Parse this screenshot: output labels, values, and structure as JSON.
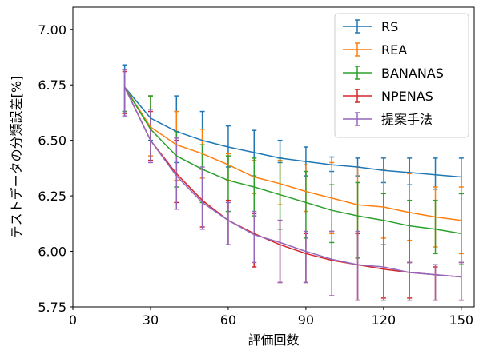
{
  "chart_data": {
    "type": "line",
    "xlabel": "評価回数",
    "ylabel": "テストデータの分類誤差[%]",
    "xlim": [
      0,
      155
    ],
    "ylim": [
      5.75,
      7.1
    ],
    "xticks": [
      0,
      30,
      60,
      90,
      120,
      150
    ],
    "yticks": [
      5.75,
      6.0,
      6.25,
      6.5,
      6.75,
      7.0
    ],
    "xtick_labels": [
      "0",
      "30",
      "60",
      "90",
      "120",
      "150"
    ],
    "ytick_labels": [
      "5.75",
      "6.00",
      "6.25",
      "6.50",
      "6.75",
      "7.00"
    ],
    "x": [
      20,
      30,
      40,
      50,
      60,
      70,
      80,
      90,
      100,
      110,
      120,
      130,
      140,
      150
    ],
    "legend_position": "top-right",
    "grid": false,
    "series": [
      {
        "name": "RS",
        "color": "#1f77b4",
        "values": [
          6.74,
          6.6,
          6.54,
          6.5,
          6.47,
          6.445,
          6.42,
          6.405,
          6.39,
          6.38,
          6.365,
          6.355,
          6.345,
          6.335
        ],
        "err_low": [
          6.63,
          6.5,
          6.4,
          6.37,
          6.38,
          6.34,
          6.4,
          6.34,
          6.36,
          6.34,
          6.31,
          6.3,
          6.28,
          6.26
        ],
        "err_high": [
          6.84,
          6.7,
          6.7,
          6.63,
          6.565,
          6.545,
          6.5,
          6.47,
          6.425,
          6.42,
          6.42,
          6.42,
          6.42,
          6.42
        ]
      },
      {
        "name": "REA",
        "color": "#ff7f0e",
        "values": [
          6.74,
          6.56,
          6.48,
          6.44,
          6.39,
          6.335,
          6.305,
          6.27,
          6.24,
          6.21,
          6.2,
          6.175,
          6.155,
          6.14
        ],
        "err_low": [
          6.62,
          6.43,
          6.32,
          6.33,
          6.32,
          6.26,
          6.21,
          6.18,
          6.08,
          6.08,
          6.06,
          6.05,
          6.02,
          5.99
        ],
        "err_high": [
          6.82,
          6.7,
          6.63,
          6.55,
          6.44,
          6.41,
          6.41,
          6.39,
          6.4,
          6.38,
          6.37,
          6.35,
          6.29,
          6.29
        ]
      },
      {
        "name": "BANANAS",
        "color": "#2ca02c",
        "values": [
          6.74,
          6.55,
          6.43,
          6.37,
          6.32,
          6.29,
          6.255,
          6.22,
          6.185,
          6.16,
          6.14,
          6.115,
          6.1,
          6.08
        ],
        "err_low": [
          6.63,
          6.41,
          6.29,
          6.22,
          6.18,
          6.16,
          6.1,
          6.06,
          6.04,
          5.97,
          6.03,
          5.95,
          5.99,
          5.94
        ],
        "err_high": [
          6.82,
          6.7,
          6.54,
          6.48,
          6.43,
          6.42,
          6.42,
          6.36,
          6.3,
          6.31,
          6.26,
          6.23,
          6.23,
          6.26
        ]
      },
      {
        "name": "NPENAS",
        "color": "#d62728",
        "values": [
          6.74,
          6.5,
          6.35,
          6.23,
          6.14,
          6.08,
          6.03,
          5.99,
          5.96,
          5.94,
          5.92,
          5.905,
          5.895,
          5.885
        ],
        "err_low": [
          6.62,
          6.41,
          6.22,
          6.11,
          6.03,
          5.93,
          5.86,
          5.86,
          5.8,
          5.78,
          5.79,
          5.79,
          5.78,
          5.78
        ],
        "err_high": [
          6.81,
          6.63,
          6.5,
          6.37,
          6.23,
          6.17,
          6.14,
          6.08,
          6.09,
          6.08,
          6.03,
          5.95,
          5.93,
          5.95
        ]
      },
      {
        "name": "提案手法",
        "color": "#9467bd",
        "values": [
          6.74,
          6.5,
          6.34,
          6.22,
          6.14,
          6.075,
          6.04,
          6.0,
          5.965,
          5.94,
          5.93,
          5.905,
          5.895,
          5.885
        ],
        "err_low": [
          6.61,
          6.4,
          6.19,
          6.1,
          6.03,
          5.95,
          5.86,
          5.86,
          5.8,
          5.78,
          5.78,
          5.78,
          5.78,
          5.78
        ],
        "err_high": [
          6.82,
          6.64,
          6.51,
          6.38,
          6.22,
          6.18,
          6.14,
          6.09,
          6.09,
          6.09,
          6.03,
          5.95,
          5.94,
          5.95
        ]
      }
    ]
  }
}
